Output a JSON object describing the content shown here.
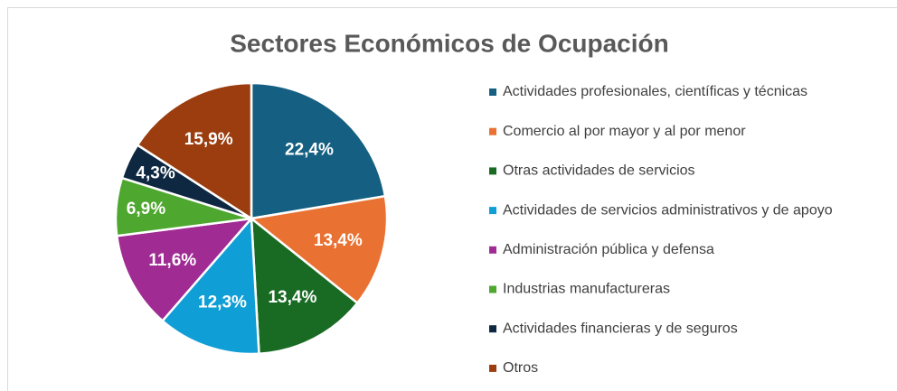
{
  "chart_data": {
    "type": "pie",
    "title": "Sectores Económicos de Ocupación",
    "categories": [
      "Actividades profesionales, científicas y técnicas",
      "Comercio al por mayor y al por menor",
      "Otras actividades de servicios",
      "Actividades de servicios administrativos y de apoyo",
      "Administración pública y defensa",
      "Industrias manufactureras",
      "Actividades financieras y de seguros",
      "Otros"
    ],
    "values": [
      22.4,
      13.4,
      13.4,
      12.3,
      11.6,
      6.9,
      4.3,
      15.9
    ],
    "value_labels": [
      "22,4%",
      "13,4%",
      "13,4%",
      "12,3%",
      "11,6%",
      "6,9%",
      "4,3%",
      "15,9%"
    ],
    "colors": [
      "#156082",
      "#E97132",
      "#196B24",
      "#0F9ED5",
      "#A02B93",
      "#4EA72E",
      "#0E2841",
      "#9B3D0E"
    ],
    "legend": "right"
  }
}
